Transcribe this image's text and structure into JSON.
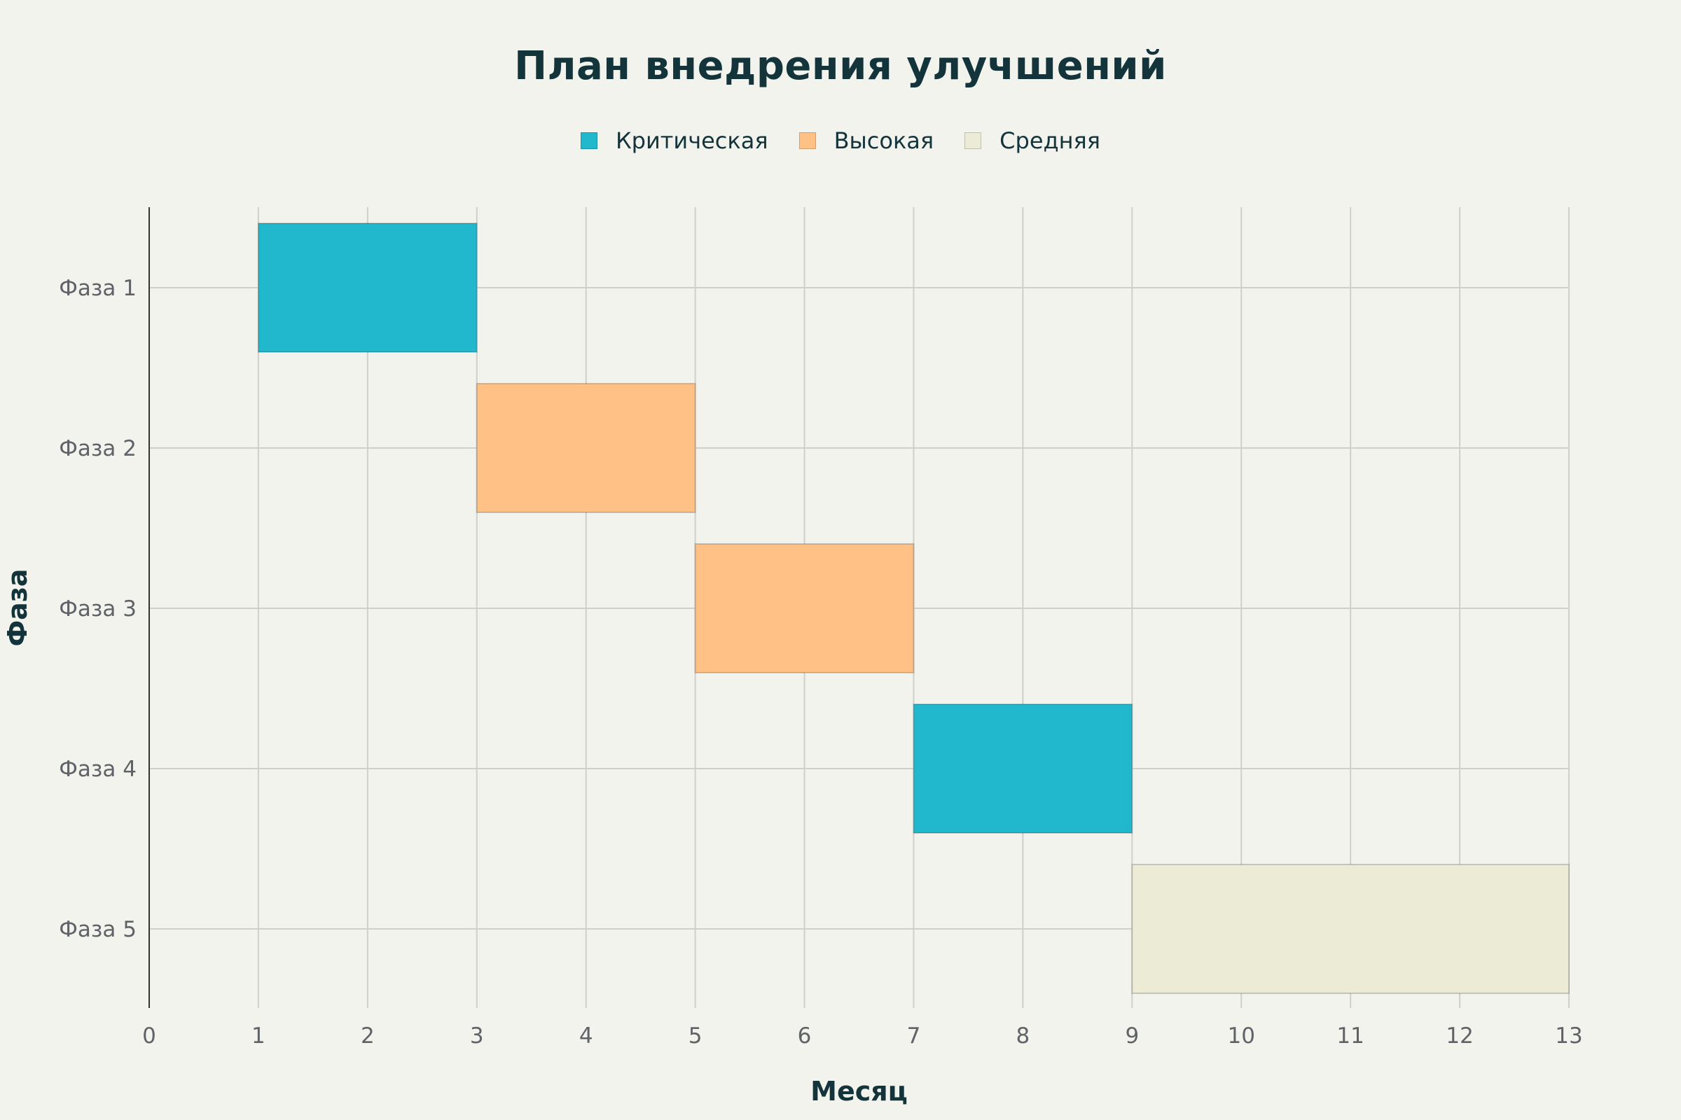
{
  "chart_data": {
    "type": "gantt",
    "title": "План внедрения улучшений",
    "xlabel": "Месяц",
    "ylabel": "Фаза",
    "xlim": [
      0,
      13
    ],
    "x_ticks": [
      0,
      1,
      2,
      3,
      4,
      5,
      6,
      7,
      8,
      9,
      10,
      11,
      12,
      13
    ],
    "grid": true,
    "legend_position": "top-center",
    "legend": [
      {
        "name": "Критическая",
        "color": "#21b8cd"
      },
      {
        "name": "Высокая",
        "color": "#ffc185"
      },
      {
        "name": "Средняя",
        "color": "#eceBd5"
      }
    ],
    "categories": [
      "Фаза 1",
      "Фаза 2",
      "Фаза 3",
      "Фаза 4",
      "Фаза 5"
    ],
    "tasks": [
      {
        "phase": "Фаза 1",
        "start": 1,
        "end": 3,
        "priority": "Критическая"
      },
      {
        "phase": "Фаза 2",
        "start": 3,
        "end": 5,
        "priority": "Высокая"
      },
      {
        "phase": "Фаза 3",
        "start": 5,
        "end": 7,
        "priority": "Высокая"
      },
      {
        "phase": "Фаза 4",
        "start": 7,
        "end": 9,
        "priority": "Критическая"
      },
      {
        "phase": "Фаза 5",
        "start": 9,
        "end": 13,
        "priority": "Средняя"
      }
    ]
  }
}
